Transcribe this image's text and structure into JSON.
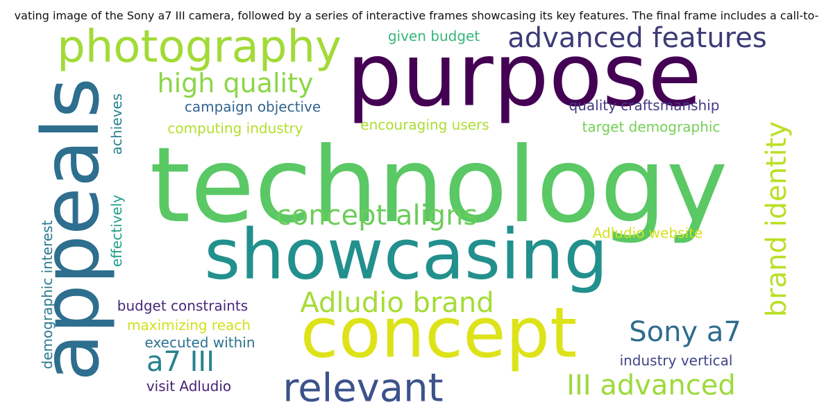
{
  "title": "vating image of the Sony a7 III camera, followed by a series of interactive frames showcasing its key features. The final frame includes a call-to-",
  "words": [
    {
      "text": "technology",
      "color": "#5ac864"
    },
    {
      "text": "purpose",
      "color": "#440154"
    },
    {
      "text": "appeals",
      "color": "#2e6e8e"
    },
    {
      "text": "showcasing",
      "color": "#22908d"
    },
    {
      "text": "concept",
      "color": "#dde318"
    },
    {
      "text": "photography",
      "color": "#a2da37"
    },
    {
      "text": "relevant",
      "color": "#3b528b"
    },
    {
      "text": "advanced features",
      "color": "#3e3a77"
    },
    {
      "text": "brand identity",
      "color": "#bbdf27"
    },
    {
      "text": "concept aligns",
      "color": "#6ccd5a"
    },
    {
      "text": "Adludio brand",
      "color": "#a5db36"
    },
    {
      "text": "III advanced",
      "color": "#9dd93b"
    },
    {
      "text": "Sony a7",
      "color": "#2f6b8e"
    },
    {
      "text": "a7 III",
      "color": "#26828e"
    },
    {
      "text": "high quality",
      "color": "#8bd646"
    },
    {
      "text": "demographic interest",
      "color": "#2a788e"
    },
    {
      "text": "achieves",
      "color": "#26828e"
    },
    {
      "text": "effectively",
      "color": "#1f9e89"
    },
    {
      "text": "campaign objective",
      "color": "#33638d"
    },
    {
      "text": "quality craftsmanship",
      "color": "#443983"
    },
    {
      "text": "target demographic",
      "color": "#73d056"
    },
    {
      "text": "encouraging users",
      "color": "#addc30"
    },
    {
      "text": "computing industry",
      "color": "#b5de2b"
    },
    {
      "text": "given budget",
      "color": "#35b779"
    },
    {
      "text": "Adludio website",
      "color": "#d2e21b"
    },
    {
      "text": "maximizing reach",
      "color": "#d0e11c"
    },
    {
      "text": "budget constraints",
      "color": "#482878"
    },
    {
      "text": "executed within",
      "color": "#2c728e"
    },
    {
      "text": "industry vertical",
      "color": "#414487"
    },
    {
      "text": "visit Adludio",
      "color": "#482173"
    }
  ]
}
